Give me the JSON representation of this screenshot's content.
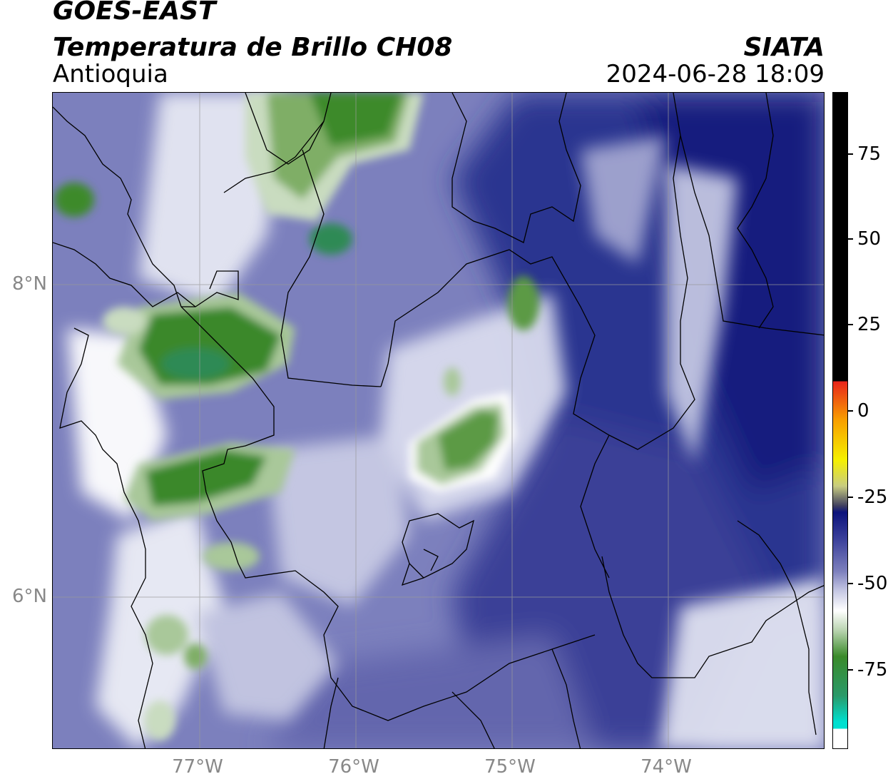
{
  "header": {
    "satellite": "GOES-EAST",
    "product": "Temperatura de Brillo CH08",
    "region": "Antioquia",
    "agency": "SIATA",
    "datetime": "2024-06-28 18:09"
  },
  "axes": {
    "lon_labels": [
      "77°W",
      "76°W",
      "75°W",
      "74°W"
    ],
    "lat_labels": [
      "8°N",
      "6°N"
    ]
  },
  "colorbar": {
    "ticks": [
      "75",
      "50",
      "25",
      "0",
      "-25",
      "-50",
      "-75"
    ],
    "colors": {
      "top_black": "#000000",
      "red": "#e8241b",
      "orange": "#f8a000",
      "yellow": "#f5f000",
      "navy": "#0c137c",
      "blue_violet": "#7d80bd",
      "white": "#ffffff",
      "green": "#3a8a2a",
      "cyan": "#00e0d0"
    }
  }
}
